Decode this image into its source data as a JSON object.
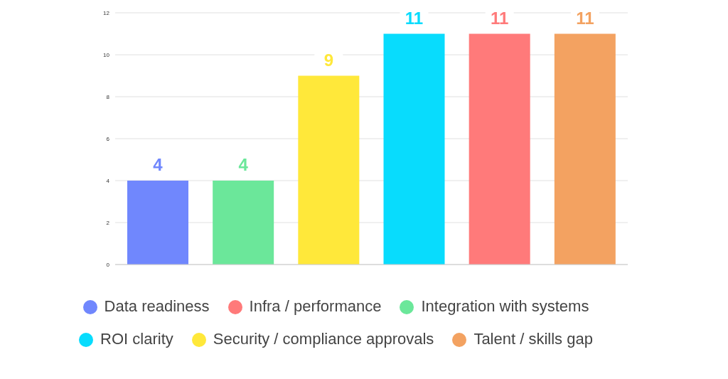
{
  "chart_data": {
    "type": "bar",
    "stacked": true,
    "categories": [
      null,
      null,
      null,
      null,
      null,
      null
    ],
    "series": [
      {
        "name": "Data readiness",
        "color": "#7087fd",
        "values": [
          4,
          null,
          null,
          null,
          null,
          null
        ]
      },
      {
        "name": "Integration with systems",
        "color": "#6be79a",
        "values": [
          null,
          4,
          null,
          null,
          null,
          null
        ]
      },
      {
        "name": "Security / compliance approvals",
        "color": "#ffe83a",
        "values": [
          null,
          null,
          9,
          null,
          null,
          null
        ]
      },
      {
        "name": "ROI clarity",
        "color": "#08dcfd",
        "values": [
          null,
          null,
          null,
          11,
          null,
          null
        ]
      },
      {
        "name": "Infra / performance",
        "color": "#ff7a7a",
        "values": [
          null,
          null,
          null,
          null,
          11,
          null
        ]
      },
      {
        "name": "Talent / skills gap",
        "color": "#f3a261",
        "values": [
          null,
          null,
          null,
          null,
          null,
          11
        ]
      }
    ],
    "ylim": [
      0,
      12
    ],
    "yticks": [
      0,
      2,
      4,
      6,
      8,
      10,
      12
    ],
    "grid": "y",
    "data_labels": true,
    "tick_labels": "y",
    "legend": "bottom"
  }
}
